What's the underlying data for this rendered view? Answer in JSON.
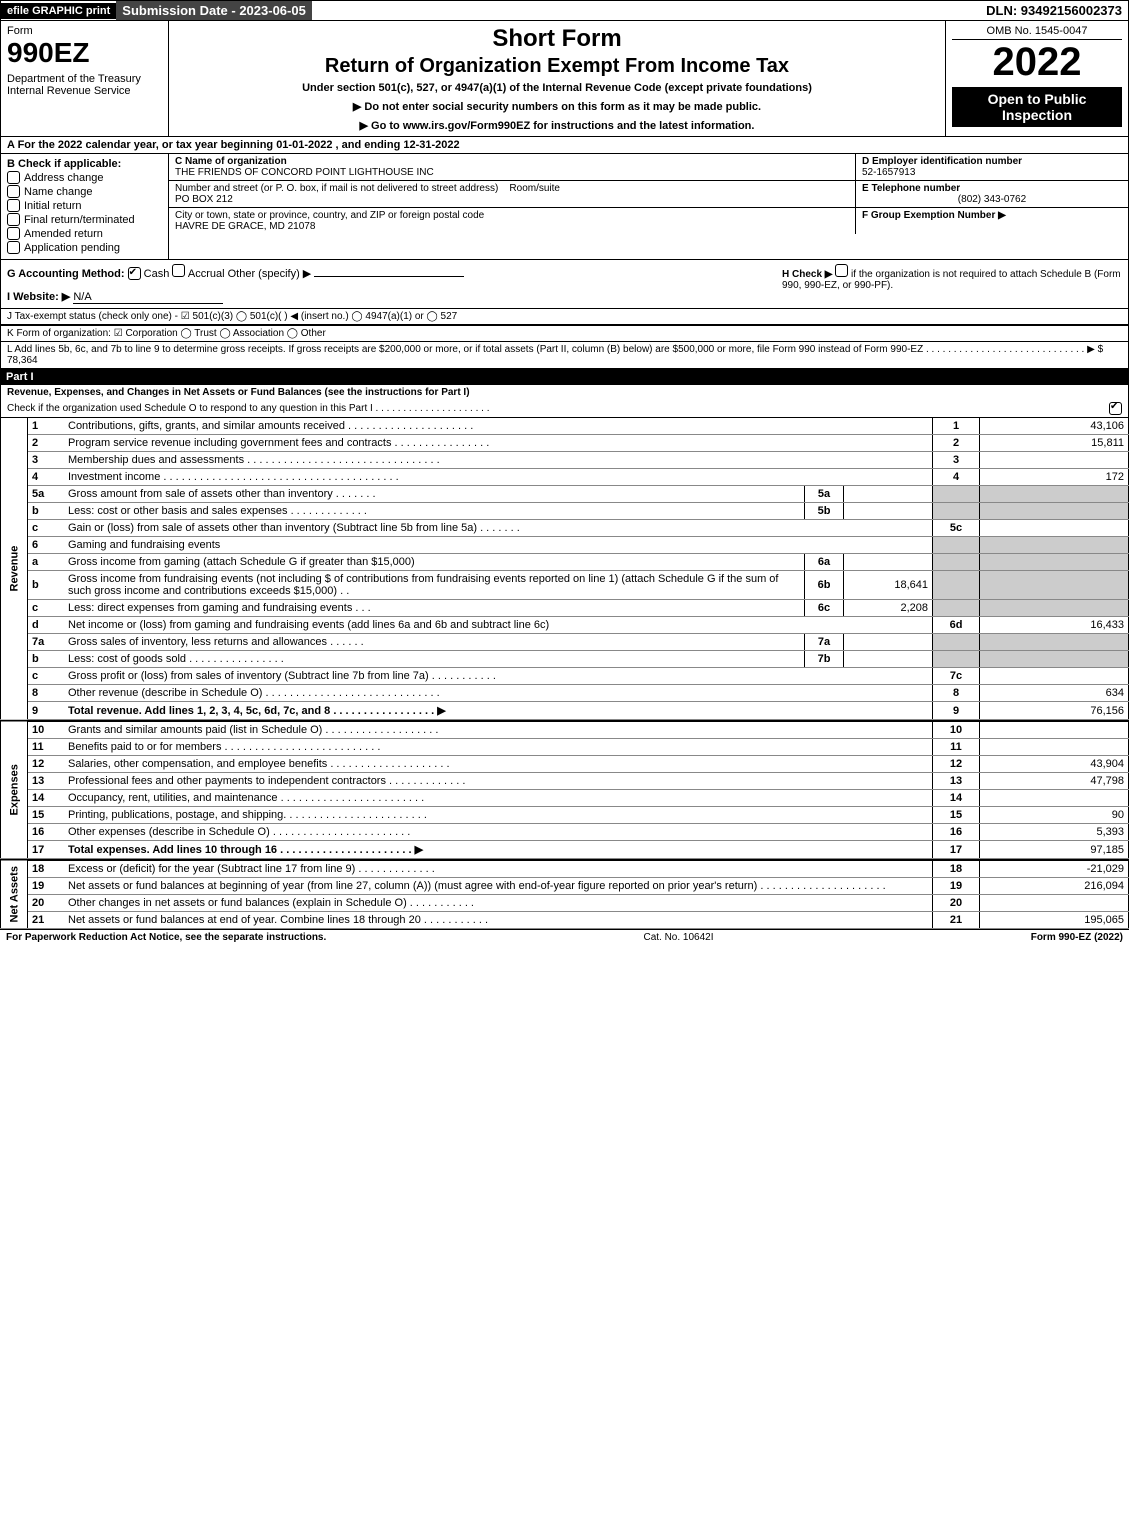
{
  "top": {
    "efile": "efile GRAPHIC print",
    "subdate": "Submission Date - 2023-06-05",
    "dln": "DLN: 93492156002373"
  },
  "header": {
    "form_word": "Form",
    "form_num": "990EZ",
    "dept": "Department of the Treasury\nInternal Revenue Service",
    "short_form": "Short Form",
    "title": "Return of Organization Exempt From Income Tax",
    "under": "Under section 501(c), 527, or 4947(a)(1) of the Internal Revenue Code (except private foundations)",
    "instr1": "▶ Do not enter social security numbers on this form as it may be made public.",
    "instr2": "▶ Go to www.irs.gov/Form990EZ for instructions and the latest information.",
    "omb": "OMB No. 1545-0047",
    "year": "2022",
    "open": "Open to Public Inspection"
  },
  "line_a": "A  For the 2022 calendar year, or tax year beginning 01-01-2022 , and ending 12-31-2022",
  "section_b": {
    "label": "B  Check if applicable:",
    "items": [
      "Address change",
      "Name change",
      "Initial return",
      "Final return/terminated",
      "Amended return",
      "Application pending"
    ]
  },
  "section_c": {
    "name_label": "C Name of organization",
    "name": "THE FRIENDS OF CONCORD POINT LIGHTHOUSE INC",
    "street_label": "Number and street (or P. O. box, if mail is not delivered to street address)",
    "room_label": "Room/suite",
    "street": "PO BOX 212",
    "city_label": "City or town, state or province, country, and ZIP or foreign postal code",
    "city": "HAVRE DE GRACE, MD  21078"
  },
  "section_d": {
    "ein_label": "D Employer identification number",
    "ein": "52-1657913",
    "tel_label": "E Telephone number",
    "tel": "(802) 343-0762",
    "group_label": "F Group Exemption Number  ▶"
  },
  "section_g": {
    "method_label": "G Accounting Method:",
    "cash": "Cash",
    "accrual": "Accrual",
    "other": "Other (specify) ▶",
    "website_label": "I Website: ▶",
    "website": "N/A",
    "h_label": "H  Check ▶",
    "h_text": "if the organization is not required to attach Schedule B (Form 990, 990-EZ, or 990-PF)."
  },
  "line_j": "J Tax-exempt status (check only one) - ☑ 501(c)(3)  ◯ 501(c)( ) ◀ (insert no.)  ◯ 4947(a)(1) or  ◯ 527",
  "line_k": "K Form of organization:  ☑ Corporation  ◯ Trust  ◯ Association  ◯ Other",
  "line_l": "L Add lines 5b, 6c, and 7b to line 9 to determine gross receipts. If gross receipts are $200,000 or more, or if total assets (Part II, column (B) below) are $500,000 or more, file Form 990 instead of Form 990-EZ . . . . . . . . . . . . . . . . . . . . . . . . . . . . . ▶ $ 78,364",
  "part1": {
    "label": "Part I",
    "title": "Revenue, Expenses, and Changes in Net Assets or Fund Balances (see the instructions for Part I)",
    "check_o": "Check if the organization used Schedule O to respond to any question in this Part I . . . . . . . . . . . . . . . . . . . . ."
  },
  "sections": {
    "revenue": "Revenue",
    "expenses": "Expenses",
    "netassets": "Net Assets"
  },
  "rows": [
    {
      "n": "1",
      "d": "Contributions, gifts, grants, and similar amounts received . . . . . . . . . . . . . . . . . . . . .",
      "c": "1",
      "a": "43,106"
    },
    {
      "n": "2",
      "d": "Program service revenue including government fees and contracts . . . . . . . . . . . . . . . .",
      "c": "2",
      "a": "15,811"
    },
    {
      "n": "3",
      "d": "Membership dues and assessments . . . . . . . . . . . . . . . . . . . . . . . . . . . . . . . .",
      "c": "3",
      "a": ""
    },
    {
      "n": "4",
      "d": "Investment income . . . . . . . . . . . . . . . . . . . . . . . . . . . . . . . . . . . . . . .",
      "c": "4",
      "a": "172"
    },
    {
      "n": "5a",
      "d": "Gross amount from sale of assets other than inventory . . . . . . .",
      "sn": "5a",
      "sa": "",
      "grey": true
    },
    {
      "n": "b",
      "d": "Less: cost or other basis and sales expenses . . . . . . . . . . . . .",
      "sn": "5b",
      "sa": "",
      "grey": true
    },
    {
      "n": "c",
      "d": "Gain or (loss) from sale of assets other than inventory (Subtract line 5b from line 5a) . . . . . . .",
      "c": "5c",
      "a": ""
    },
    {
      "n": "6",
      "d": "Gaming and fundraising events",
      "grey": true
    },
    {
      "n": "a",
      "d": "Gross income from gaming (attach Schedule G if greater than $15,000)",
      "sn": "6a",
      "sa": "",
      "grey": true
    },
    {
      "n": "b",
      "d": "Gross income from fundraising events (not including $                            of contributions from fundraising events reported on line 1) (attach Schedule G if the sum of such gross income and contributions exceeds $15,000)    . .",
      "sn": "6b",
      "sa": "18,641",
      "grey": true
    },
    {
      "n": "c",
      "d": "Less: direct expenses from gaming and fundraising events     . . .",
      "sn": "6c",
      "sa": "2,208",
      "grey": true
    },
    {
      "n": "d",
      "d": "Net income or (loss) from gaming and fundraising events (add lines 6a and 6b and subtract line 6c)",
      "c": "6d",
      "a": "16,433"
    },
    {
      "n": "7a",
      "d": "Gross sales of inventory, less returns and allowances . . . . . .",
      "sn": "7a",
      "sa": "",
      "grey": true
    },
    {
      "n": "b",
      "d": "Less: cost of goods sold          . . . . . . . . . . . . . . . .",
      "sn": "7b",
      "sa": "",
      "grey": true
    },
    {
      "n": "c",
      "d": "Gross profit or (loss) from sales of inventory (Subtract line 7b from line 7a) . . . . . . . . . . .",
      "c": "7c",
      "a": ""
    },
    {
      "n": "8",
      "d": "Other revenue (describe in Schedule O) . . . . . . . . . . . . . . . . . . . . . . . . . . . . .",
      "c": "8",
      "a": "634"
    },
    {
      "n": "9",
      "d": "Total revenue. Add lines 1, 2, 3, 4, 5c, 6d, 7c, and 8  . . . . . . . . . . . . . . . . .           ▶",
      "c": "9",
      "a": "76,156",
      "bold": true
    }
  ],
  "exp_rows": [
    {
      "n": "10",
      "d": "Grants and similar amounts paid (list in Schedule O) . . . . . . . . . . . . . . . . . . .",
      "c": "10",
      "a": ""
    },
    {
      "n": "11",
      "d": "Benefits paid to or for members       . . . . . . . . . . . . . . . . . . . . . . . . . .",
      "c": "11",
      "a": ""
    },
    {
      "n": "12",
      "d": "Salaries, other compensation, and employee benefits . . . . . . . . . . . . . . . . . . . .",
      "c": "12",
      "a": "43,904"
    },
    {
      "n": "13",
      "d": "Professional fees and other payments to independent contractors . . . . . . . . . . . . .",
      "c": "13",
      "a": "47,798"
    },
    {
      "n": "14",
      "d": "Occupancy, rent, utilities, and maintenance . . . . . . . . . . . . . . . . . . . . . . . .",
      "c": "14",
      "a": ""
    },
    {
      "n": "15",
      "d": "Printing, publications, postage, and shipping. . . . . . . . . . . . . . . . . . . . . . . .",
      "c": "15",
      "a": "90"
    },
    {
      "n": "16",
      "d": "Other expenses (describe in Schedule O)     . . . . . . . . . . . . . . . . . . . . . . .",
      "c": "16",
      "a": "5,393"
    },
    {
      "n": "17",
      "d": "Total expenses. Add lines 10 through 16    . . . . . . . . . . . . . . . . . . . . . .  ▶",
      "c": "17",
      "a": "97,185",
      "bold": true
    }
  ],
  "net_rows": [
    {
      "n": "18",
      "d": "Excess or (deficit) for the year (Subtract line 17 from line 9)       . . . . . . . . . . . . .",
      "c": "18",
      "a": "-21,029"
    },
    {
      "n": "19",
      "d": "Net assets or fund balances at beginning of year (from line 27, column (A)) (must agree with end-of-year figure reported on prior year's return) . . . . . . . . . . . . . . . . . . . . .",
      "c": "19",
      "a": "216,094"
    },
    {
      "n": "20",
      "d": "Other changes in net assets or fund balances (explain in Schedule O) . . . . . . . . . . .",
      "c": "20",
      "a": ""
    },
    {
      "n": "21",
      "d": "Net assets or fund balances at end of year. Combine lines 18 through 20 . . . . . . . . . . .",
      "c": "21",
      "a": "195,065"
    }
  ],
  "footer": {
    "left": "For Paperwork Reduction Act Notice, see the separate instructions.",
    "mid": "Cat. No. 10642I",
    "right": "Form 990-EZ (2022)"
  }
}
